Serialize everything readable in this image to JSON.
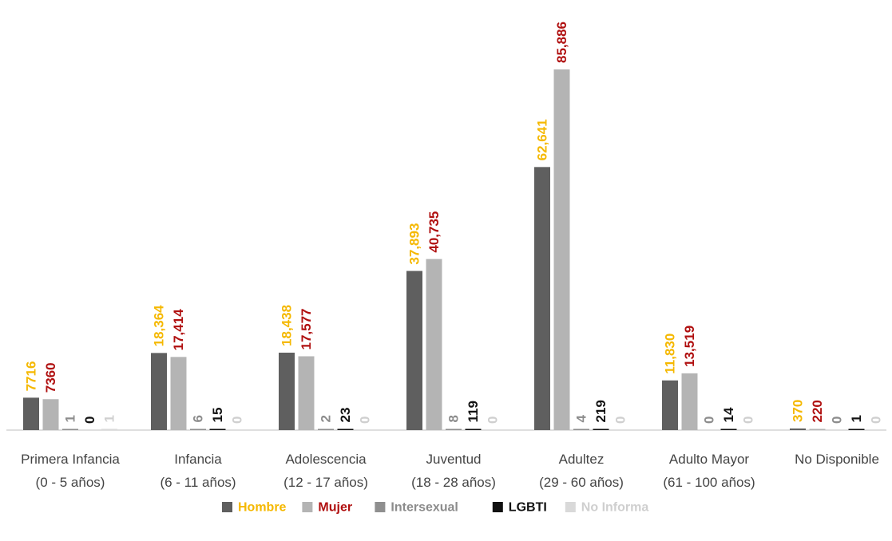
{
  "chart_data": {
    "type": "bar",
    "title": "",
    "xlabel": "",
    "ylabel": "",
    "ylim": [
      0,
      90000
    ],
    "grid": false,
    "legend_position": "bottom",
    "categories": [
      [
        "Primera Infancia",
        "(0 - 5 años)"
      ],
      [
        "Infancia",
        "(6 - 11 años)"
      ],
      [
        "Adolescencia",
        "(12 - 17 años)"
      ],
      [
        "Juventud",
        "(18 - 28 años)"
      ],
      [
        "Adultez",
        "(29 - 60 años)"
      ],
      [
        "Adulto Mayor",
        "(61 - 100 años)"
      ],
      [
        "No Disponible"
      ]
    ],
    "series": [
      {
        "name": "Hombre",
        "bar_color": "#5f5f5f",
        "label_color": "#f5b800",
        "values": [
          7716,
          18364,
          18438,
          37893,
          62641,
          11830,
          370
        ],
        "labels": [
          "7716",
          "18,364",
          "18,438",
          "37,893",
          "62,641",
          "11,830",
          "370"
        ]
      },
      {
        "name": "Mujer",
        "bar_color": "#b4b4b4",
        "label_color": "#b01010",
        "values": [
          7360,
          17414,
          17577,
          40735,
          85886,
          13519,
          220
        ],
        "labels": [
          "7360",
          "17,414",
          "17,577",
          "40,735",
          "85,886",
          "13,519",
          "220"
        ]
      },
      {
        "name": "Intersexual",
        "bar_color": "#8f8f8f",
        "label_color": "#8c8c8c",
        "values": [
          1,
          6,
          2,
          8,
          4,
          0,
          0
        ],
        "labels": [
          "1",
          "6",
          "2",
          "8",
          "4",
          "0",
          "0"
        ]
      },
      {
        "name": "LGBTI",
        "bar_color": "#111111",
        "label_color": "#111111",
        "values": [
          0,
          15,
          23,
          119,
          219,
          14,
          1
        ],
        "labels": [
          "0",
          "15",
          "23",
          "119",
          "219",
          "14",
          "1"
        ]
      },
      {
        "name": "No Informa",
        "bar_color": "#d9d9d9",
        "label_color": "#cfcfcf",
        "values": [
          1,
          0,
          0,
          0,
          0,
          0,
          0
        ],
        "labels": [
          "1",
          "0",
          "0",
          "0",
          "0",
          "0",
          "0"
        ]
      }
    ]
  }
}
